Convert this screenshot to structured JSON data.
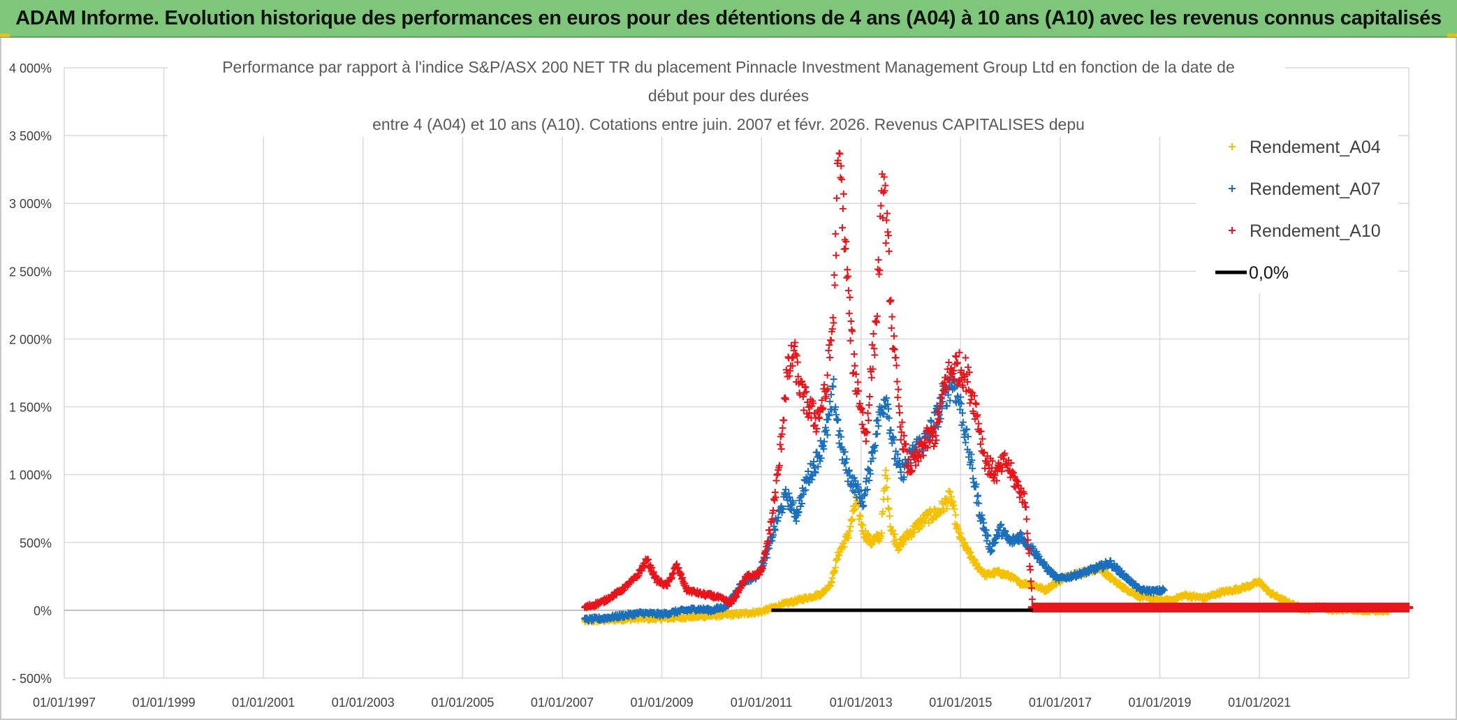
{
  "header": {
    "banner_text": "ADAM Informe. Evolution historique des performances en euros pour des détentions de 4 ans (A04) à 10 ans (A10) avec les revenus connus capitalisés"
  },
  "chart_data": {
    "type": "scatter",
    "title_lines": [
      "Performance par rapport à l'indice S&P/ASX 200 NET TR  du placement Pinnacle Investment Management Group Ltd en fonction de la date de",
      "début pour des durées",
      "entre 4 (A04) et 10 ans (A10). Cotations entre juin. 2007 et févr. 2026. Revenus CAPITALISES depu"
    ],
    "xlabel": "",
    "ylabel": "",
    "ylim": [
      -500,
      4000
    ],
    "xlim": [
      1997.0,
      2024.0
    ],
    "y_ticks": [
      -500,
      0,
      500,
      1000,
      1500,
      2000,
      2500,
      3000,
      3500,
      4000
    ],
    "y_tick_labels": [
      "- 500%",
      "0%",
      "500%",
      "1 000%",
      "1 500%",
      "2 000%",
      "2 500%",
      "3 000%",
      "3 500%",
      "4 000%"
    ],
    "x_tick_labels": [
      "01/01/1997",
      "01/01/1999",
      "01/01/2001",
      "01/01/2003",
      "01/01/2005",
      "01/01/2007",
      "01/01/2009",
      "01/01/2011",
      "01/01/2013",
      "01/01/2015",
      "01/01/2017",
      "01/01/2019",
      "01/01/2021"
    ],
    "grid": true,
    "legend_position": "top-right",
    "series": [
      {
        "name": "Rendement_A04",
        "color": "#f5c000",
        "marker": "+",
        "points": [
          [
            2007.45,
            -80
          ],
          [
            2007.9,
            -70
          ],
          [
            2008.5,
            -60
          ],
          [
            2009.0,
            -60
          ],
          [
            2009.5,
            -50
          ],
          [
            2010.0,
            -40
          ],
          [
            2010.5,
            -30
          ],
          [
            2011.0,
            -10
          ],
          [
            2011.4,
            40
          ],
          [
            2011.8,
            80
          ],
          [
            2012.2,
            120
          ],
          [
            2012.4,
            200
          ],
          [
            2012.55,
            420
          ],
          [
            2012.75,
            560
          ],
          [
            2012.9,
            800
          ],
          [
            2013.05,
            580
          ],
          [
            2013.2,
            500
          ],
          [
            2013.4,
            550
          ],
          [
            2013.5,
            1020
          ],
          [
            2013.6,
            600
          ],
          [
            2013.75,
            470
          ],
          [
            2013.9,
            540
          ],
          [
            2014.1,
            610
          ],
          [
            2014.3,
            680
          ],
          [
            2014.55,
            720
          ],
          [
            2014.8,
            840
          ],
          [
            2014.95,
            570
          ],
          [
            2015.1,
            460
          ],
          [
            2015.3,
            340
          ],
          [
            2015.5,
            260
          ],
          [
            2015.75,
            280
          ],
          [
            2016.0,
            250
          ],
          [
            2016.2,
            200
          ],
          [
            2016.45,
            190
          ],
          [
            2016.7,
            150
          ],
          [
            2016.9,
            200
          ],
          [
            2017.2,
            260
          ],
          [
            2017.5,
            280
          ],
          [
            2017.8,
            310
          ],
          [
            2018.0,
            240
          ],
          [
            2018.3,
            160
          ],
          [
            2018.6,
            100
          ],
          [
            2018.9,
            80
          ],
          [
            2019.2,
            70
          ],
          [
            2019.5,
            110
          ],
          [
            2019.9,
            90
          ],
          [
            2020.2,
            130
          ],
          [
            2020.5,
            150
          ],
          [
            2020.8,
            180
          ],
          [
            2021.0,
            210
          ],
          [
            2021.2,
            130
          ],
          [
            2021.5,
            70
          ],
          [
            2021.8,
            20
          ],
          [
            2022.0,
            10
          ],
          [
            2022.2,
            30
          ],
          [
            2022.5,
            0
          ],
          [
            2022.8,
            10
          ],
          [
            2023.0,
            5
          ],
          [
            2023.3,
            0
          ],
          [
            2023.6,
            0
          ]
        ]
      },
      {
        "name": "Rendement_A07",
        "color": "#1a6fbd",
        "marker": "+",
        "points": [
          [
            2007.45,
            -70
          ],
          [
            2007.8,
            -60
          ],
          [
            2008.2,
            -40
          ],
          [
            2008.6,
            -20
          ],
          [
            2009.0,
            -30
          ],
          [
            2009.3,
            -10
          ],
          [
            2009.7,
            10
          ],
          [
            2010.0,
            0
          ],
          [
            2010.3,
            30
          ],
          [
            2010.6,
            200
          ],
          [
            2010.9,
            250
          ],
          [
            2011.1,
            400
          ],
          [
            2011.3,
            650
          ],
          [
            2011.5,
            850
          ],
          [
            2011.7,
            700
          ],
          [
            2011.9,
            950
          ],
          [
            2012.1,
            1100
          ],
          [
            2012.3,
            1300
          ],
          [
            2012.45,
            1600
          ],
          [
            2012.6,
            1200
          ],
          [
            2012.75,
            1000
          ],
          [
            2012.9,
            900
          ],
          [
            2013.05,
            800
          ],
          [
            2013.2,
            1100
          ],
          [
            2013.35,
            1400
          ],
          [
            2013.5,
            1600
          ],
          [
            2013.65,
            1200
          ],
          [
            2013.8,
            1000
          ],
          [
            2013.95,
            1100
          ],
          [
            2014.1,
            1200
          ],
          [
            2014.3,
            1250
          ],
          [
            2014.5,
            1400
          ],
          [
            2014.7,
            1600
          ],
          [
            2014.85,
            1700
          ],
          [
            2015.0,
            1500
          ],
          [
            2015.2,
            1100
          ],
          [
            2015.4,
            700
          ],
          [
            2015.6,
            450
          ],
          [
            2015.8,
            600
          ],
          [
            2016.0,
            500
          ],
          [
            2016.2,
            550
          ],
          [
            2016.45,
            450
          ],
          [
            2016.7,
            320
          ],
          [
            2016.95,
            230
          ],
          [
            2017.2,
            250
          ],
          [
            2017.5,
            280
          ],
          [
            2017.8,
            320
          ],
          [
            2018.0,
            350
          ],
          [
            2018.3,
            250
          ],
          [
            2018.6,
            150
          ],
          [
            2018.9,
            140
          ],
          [
            2019.1,
            150
          ]
        ]
      },
      {
        "name": "Rendement_A10",
        "color": "#e8141a",
        "marker": "+",
        "points": [
          [
            2007.45,
            20
          ],
          [
            2007.8,
            60
          ],
          [
            2008.2,
            150
          ],
          [
            2008.5,
            250
          ],
          [
            2008.7,
            370
          ],
          [
            2008.9,
            220
          ],
          [
            2009.1,
            180
          ],
          [
            2009.3,
            330
          ],
          [
            2009.5,
            150
          ],
          [
            2009.8,
            120
          ],
          [
            2010.1,
            100
          ],
          [
            2010.4,
            50
          ],
          [
            2010.7,
            250
          ],
          [
            2011.0,
            280
          ],
          [
            2011.2,
            650
          ],
          [
            2011.35,
            1050
          ],
          [
            2011.5,
            1700
          ],
          [
            2011.65,
            1900
          ],
          [
            2011.8,
            1600
          ],
          [
            2011.95,
            1500
          ],
          [
            2012.1,
            1400
          ],
          [
            2012.3,
            1600
          ],
          [
            2012.45,
            2200
          ],
          [
            2012.55,
            3400
          ],
          [
            2012.65,
            2900
          ],
          [
            2012.75,
            2300
          ],
          [
            2012.85,
            1800
          ],
          [
            2013.0,
            1500
          ],
          [
            2013.1,
            1250
          ],
          [
            2013.2,
            1750
          ],
          [
            2013.3,
            2100
          ],
          [
            2013.45,
            3200
          ],
          [
            2013.55,
            2600
          ],
          [
            2013.65,
            1950
          ],
          [
            2013.8,
            1350
          ],
          [
            2013.95,
            1050
          ],
          [
            2014.1,
            1100
          ],
          [
            2014.3,
            1250
          ],
          [
            2014.5,
            1300
          ],
          [
            2014.7,
            1700
          ],
          [
            2014.9,
            1800
          ],
          [
            2015.1,
            1750
          ],
          [
            2015.3,
            1500
          ],
          [
            2015.5,
            1100
          ],
          [
            2015.7,
            1000
          ],
          [
            2015.9,
            1100
          ],
          [
            2016.1,
            950
          ],
          [
            2016.3,
            800
          ],
          [
            2016.45,
            20
          ],
          [
            2017.0,
            20
          ],
          [
            2018.0,
            20
          ],
          [
            2019.0,
            20
          ],
          [
            2020.0,
            20
          ],
          [
            2021.0,
            20
          ],
          [
            2022.0,
            20
          ],
          [
            2023.0,
            20
          ],
          [
            2024.0,
            20
          ]
        ]
      },
      {
        "name": "0,0%",
        "color": "#000000",
        "marker": "line",
        "points": [
          [
            2011.2,
            0
          ],
          [
            2016.45,
            0
          ]
        ]
      }
    ]
  }
}
